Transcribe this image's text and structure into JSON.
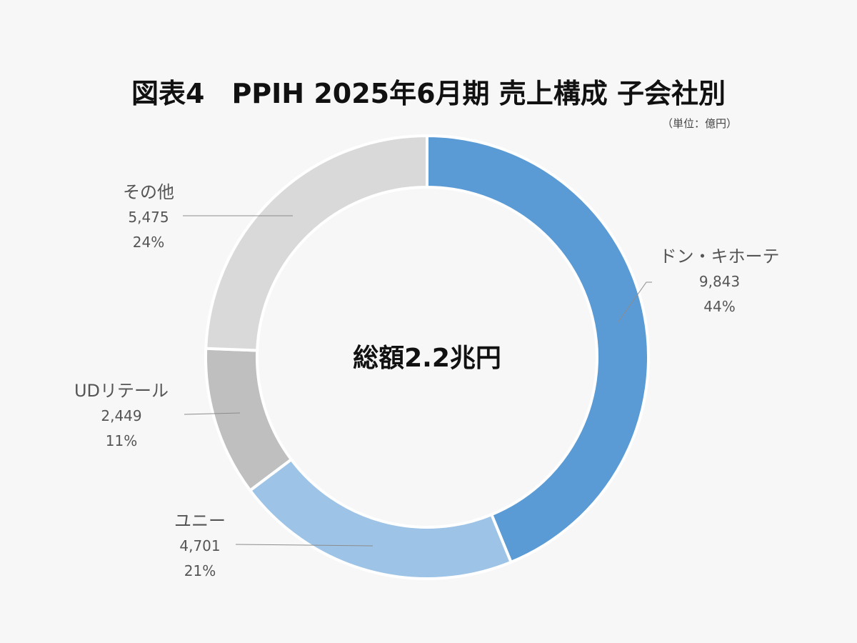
{
  "title": "図表4　PPIH 2025年6月期 売上構成 子会社別",
  "unit": "（単位：億円）",
  "center_label": "総額2.2兆円",
  "labels": [
    {
      "name": "ドン・キホーテ",
      "value": "9,843",
      "pct": "44%"
    },
    {
      "name": "ユニー",
      "value": "4,701",
      "pct": "21%"
    },
    {
      "name": "UDリテール",
      "value": "2,449",
      "pct": "11%"
    },
    {
      "name": "その他",
      "value": "5,475",
      "pct": "24%"
    }
  ],
  "chart_data": {
    "type": "pie",
    "subtype": "donut",
    "title": "図表4　PPIH 2025年6月期 売上構成 子会社別",
    "unit": "億円",
    "center_text": "総額2.2兆円",
    "categories": [
      "ドン・キホーテ",
      "ユニー",
      "UDリテール",
      "その他"
    ],
    "values": [
      9843,
      4701,
      2449,
      5475
    ],
    "percentages": [
      44,
      21,
      11,
      24
    ],
    "colors": [
      "#5b9bd5",
      "#9dc3e6",
      "#bfbfbf",
      "#d9d9d9"
    ],
    "start_angle": "12 o'clock",
    "direction": "clockwise",
    "legend": "none (leader-line data labels)"
  }
}
